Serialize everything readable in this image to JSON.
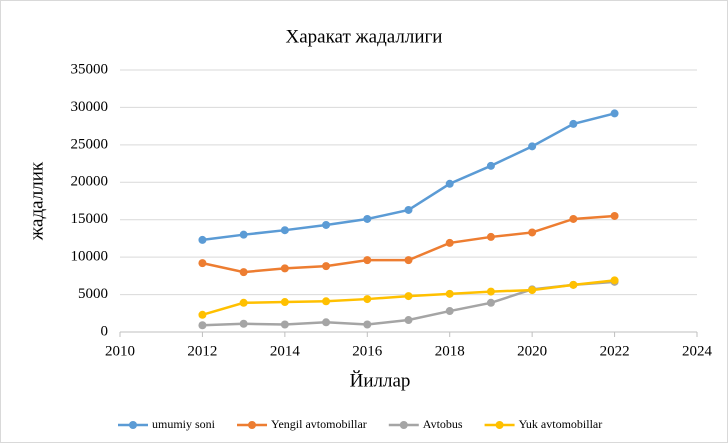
{
  "chart_data": {
    "type": "line",
    "title": "Харакат жадаллиги",
    "xlabel": "Йиллар",
    "ylabel": "жадаллик",
    "x": [
      2012,
      2013,
      2014,
      2015,
      2016,
      2017,
      2018,
      2019,
      2020,
      2021,
      2022
    ],
    "series": [
      {
        "name": "umumiy soni",
        "color": "#5b9bd5",
        "values": [
          12300,
          13000,
          13600,
          14300,
          15100,
          16300,
          19800,
          22200,
          24800,
          27800,
          29200
        ]
      },
      {
        "name": "Yengil avtomobillar",
        "color": "#ed7d31",
        "values": [
          9200,
          8000,
          8500,
          8800,
          9600,
          9600,
          11900,
          12700,
          13300,
          15100,
          15500
        ]
      },
      {
        "name": "Avtobus",
        "color": "#a5a5a5",
        "values": [
          900,
          1100,
          1000,
          1300,
          1000,
          1600,
          2800,
          3900,
          5700,
          6300,
          6700
        ]
      },
      {
        "name": "Yuk avtomobillar",
        "color": "#ffc000",
        "values": [
          2300,
          3900,
          4000,
          4100,
          4400,
          4800,
          5100,
          5400,
          5600,
          6300,
          6900
        ]
      }
    ],
    "xlim": [
      2010,
      2024
    ],
    "xticks": [
      2010,
      2012,
      2014,
      2016,
      2018,
      2020,
      2022,
      2024
    ],
    "ylim": [
      0,
      35000
    ],
    "yticks": [
      0,
      5000,
      10000,
      15000,
      20000,
      25000,
      30000,
      35000
    ],
    "grid": true,
    "legend": "bottom"
  }
}
